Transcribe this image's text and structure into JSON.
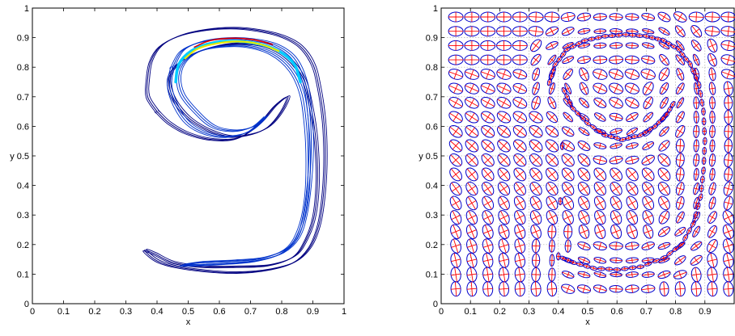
{
  "chart_data": [
    {
      "type": "contour",
      "title": "",
      "xlabel": "x",
      "ylabel": "y",
      "xlim": [
        0,
        1
      ],
      "ylim": [
        0,
        1
      ],
      "grid": false,
      "xticks": [
        "0",
        "0.1",
        "0.2",
        "0.3",
        "0.4",
        "0.5",
        "0.6",
        "0.7",
        "0.8",
        "0.9",
        "1"
      ],
      "yticks": [
        "0",
        "0.1",
        "0.2",
        "0.3",
        "0.4",
        "0.5",
        "0.6",
        "0.7",
        "0.8",
        "0.9",
        "1"
      ],
      "curve_shape": "spiral resembling the digit 9: upper loop centered near (0.64, 0.73) with tail sweeping down to (0.36, 0.18)",
      "outer_contour": [
        [
          0.4,
          0.65
        ],
        [
          0.37,
          0.7
        ],
        [
          0.37,
          0.76
        ],
        [
          0.38,
          0.82
        ],
        [
          0.41,
          0.87
        ],
        [
          0.47,
          0.905
        ],
        [
          0.55,
          0.925
        ],
        [
          0.64,
          0.932
        ],
        [
          0.72,
          0.925
        ],
        [
          0.8,
          0.905
        ],
        [
          0.86,
          0.87
        ],
        [
          0.9,
          0.81
        ],
        [
          0.92,
          0.73
        ],
        [
          0.935,
          0.62
        ],
        [
          0.94,
          0.5
        ],
        [
          0.935,
          0.38
        ],
        [
          0.92,
          0.27
        ],
        [
          0.89,
          0.19
        ],
        [
          0.84,
          0.14
        ],
        [
          0.76,
          0.115
        ],
        [
          0.66,
          0.105
        ],
        [
          0.56,
          0.11
        ],
        [
          0.46,
          0.125
        ],
        [
          0.4,
          0.145
        ],
        [
          0.36,
          0.18
        ],
        [
          0.39,
          0.17
        ],
        [
          0.45,
          0.14
        ],
        [
          0.55,
          0.125
        ],
        [
          0.66,
          0.125
        ],
        [
          0.76,
          0.13
        ],
        [
          0.84,
          0.16
        ],
        [
          0.88,
          0.22
        ],
        [
          0.905,
          0.3
        ],
        [
          0.915,
          0.42
        ],
        [
          0.91,
          0.55
        ],
        [
          0.895,
          0.66
        ],
        [
          0.87,
          0.76
        ],
        [
          0.82,
          0.83
        ],
        [
          0.75,
          0.87
        ],
        [
          0.66,
          0.88
        ],
        [
          0.57,
          0.865
        ],
        [
          0.49,
          0.83
        ],
        [
          0.44,
          0.77
        ],
        [
          0.45,
          0.7
        ],
        [
          0.5,
          0.63
        ],
        [
          0.57,
          0.585
        ],
        [
          0.64,
          0.565
        ],
        [
          0.71,
          0.575
        ],
        [
          0.76,
          0.6
        ],
        [
          0.8,
          0.65
        ],
        [
          0.82,
          0.7
        ],
        [
          0.78,
          0.67
        ],
        [
          0.73,
          0.61
        ],
        [
          0.66,
          0.56
        ],
        [
          0.58,
          0.555
        ],
        [
          0.5,
          0.575
        ],
        [
          0.44,
          0.61
        ],
        [
          0.4,
          0.65
        ]
      ],
      "mid_contour": [
        [
          0.45,
          0.8
        ],
        [
          0.48,
          0.855
        ],
        [
          0.54,
          0.885
        ],
        [
          0.62,
          0.897
        ],
        [
          0.7,
          0.894
        ],
        [
          0.78,
          0.875
        ],
        [
          0.84,
          0.83
        ],
        [
          0.875,
          0.75
        ],
        [
          0.89,
          0.65
        ],
        [
          0.895,
          0.54
        ],
        [
          0.89,
          0.42
        ],
        [
          0.875,
          0.3
        ],
        [
          0.85,
          0.22
        ],
        [
          0.8,
          0.17
        ],
        [
          0.72,
          0.145
        ],
        [
          0.62,
          0.135
        ],
        [
          0.52,
          0.13
        ],
        [
          0.48,
          0.13
        ],
        [
          0.54,
          0.14
        ],
        [
          0.64,
          0.145
        ],
        [
          0.74,
          0.155
        ],
        [
          0.82,
          0.19
        ],
        [
          0.86,
          0.26
        ],
        [
          0.88,
          0.36
        ],
        [
          0.885,
          0.48
        ],
        [
          0.88,
          0.6
        ],
        [
          0.865,
          0.71
        ],
        [
          0.83,
          0.79
        ],
        [
          0.77,
          0.845
        ],
        [
          0.69,
          0.87
        ],
        [
          0.61,
          0.87
        ],
        [
          0.54,
          0.855
        ],
        [
          0.49,
          0.82
        ],
        [
          0.47,
          0.77
        ],
        [
          0.48,
          0.71
        ],
        [
          0.52,
          0.655
        ],
        [
          0.58,
          0.6
        ],
        [
          0.65,
          0.585
        ],
        [
          0.71,
          0.6
        ],
        [
          0.75,
          0.635
        ],
        [
          0.7,
          0.585
        ],
        [
          0.63,
          0.565
        ],
        [
          0.56,
          0.575
        ],
        [
          0.5,
          0.61
        ],
        [
          0.46,
          0.67
        ],
        [
          0.44,
          0.74
        ],
        [
          0.45,
          0.8
        ]
      ],
      "cyan_band": [
        [
          0.46,
          0.75
        ],
        [
          0.47,
          0.81
        ],
        [
          0.51,
          0.855
        ],
        [
          0.57,
          0.88
        ],
        [
          0.64,
          0.888
        ],
        [
          0.72,
          0.88
        ],
        [
          0.79,
          0.855
        ],
        [
          0.84,
          0.81
        ],
        [
          0.86,
          0.75
        ]
      ],
      "yellow_band": [
        [
          0.49,
          0.83
        ],
        [
          0.53,
          0.862
        ],
        [
          0.59,
          0.88
        ],
        [
          0.66,
          0.887
        ],
        [
          0.73,
          0.878
        ],
        [
          0.79,
          0.855
        ]
      ],
      "red_ridge": [
        [
          0.52,
          0.868
        ],
        [
          0.57,
          0.89
        ],
        [
          0.64,
          0.898
        ],
        [
          0.71,
          0.893
        ],
        [
          0.77,
          0.877
        ]
      ],
      "colors": {
        "outer": "#000080",
        "mid": "#0033cc",
        "cyan": "#00ccff",
        "yellow": "#e8e800",
        "red": "#e60000"
      }
    },
    {
      "type": "scatter",
      "title": "",
      "xlabel": "x",
      "ylabel": "y",
      "xlim": [
        0,
        1
      ],
      "ylim": [
        0,
        1
      ],
      "grid": true,
      "xticks": [
        "0",
        "0.1",
        "0.2",
        "0.3",
        "0.4",
        "0.5",
        "0.6",
        "0.7",
        "0.8",
        "0.9"
      ],
      "yticks": [
        "0",
        "0.1",
        "0.2",
        "0.3",
        "0.4",
        "0.5",
        "0.6",
        "0.7",
        "0.8",
        "0.9",
        "1"
      ],
      "marker": "ellipse with crossed principal axes",
      "ellipse_grid": {
        "rows": 20,
        "cols": 18,
        "x_range": [
          0.05,
          0.98
        ],
        "y_range": [
          0.05,
          0.97
        ]
      },
      "dense_front": [
        [
          0.37,
          0.75
        ],
        [
          0.39,
          0.81
        ],
        [
          0.43,
          0.86
        ],
        [
          0.49,
          0.89
        ],
        [
          0.56,
          0.905
        ],
        [
          0.63,
          0.91
        ],
        [
          0.7,
          0.905
        ],
        [
          0.76,
          0.89
        ],
        [
          0.81,
          0.86
        ],
        [
          0.85,
          0.81
        ],
        [
          0.88,
          0.74
        ],
        [
          0.895,
          0.65
        ],
        [
          0.9,
          0.55
        ],
        [
          0.895,
          0.45
        ],
        [
          0.885,
          0.36
        ],
        [
          0.86,
          0.27
        ],
        [
          0.82,
          0.2
        ],
        [
          0.76,
          0.155
        ],
        [
          0.68,
          0.125
        ],
        [
          0.6,
          0.115
        ],
        [
          0.52,
          0.12
        ],
        [
          0.45,
          0.14
        ],
        [
          0.4,
          0.16
        ]
      ],
      "inner_arc": [
        [
          0.42,
          0.72
        ],
        [
          0.45,
          0.66
        ],
        [
          0.5,
          0.61
        ],
        [
          0.56,
          0.57
        ],
        [
          0.62,
          0.555
        ],
        [
          0.68,
          0.57
        ],
        [
          0.73,
          0.6
        ],
        [
          0.77,
          0.64
        ],
        [
          0.8,
          0.69
        ]
      ],
      "colors": {
        "ellipse": "#0000cc",
        "axis_major": "#ff0000",
        "axis_minor": "#0000cc"
      }
    }
  ]
}
